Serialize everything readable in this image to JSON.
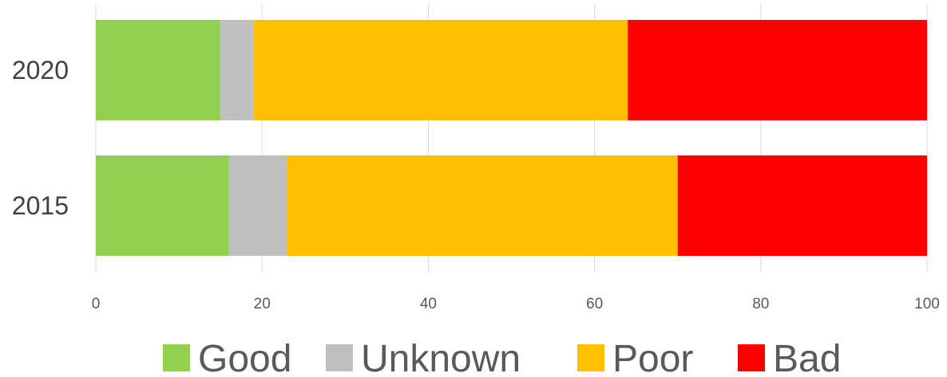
{
  "chart_data": {
    "type": "bar",
    "orientation": "horizontal",
    "stacked": true,
    "categories": [
      "2020",
      "2015"
    ],
    "series": [
      {
        "name": "Good",
        "color": "#92d050",
        "values": [
          15,
          16
        ]
      },
      {
        "name": "Unknown",
        "color": "#bfbfbf",
        "values": [
          4,
          7
        ]
      },
      {
        "name": "Poor",
        "color": "#ffc000",
        "values": [
          45,
          47
        ]
      },
      {
        "name": "Bad",
        "color": "#ff0000",
        "values": [
          36,
          30
        ]
      }
    ],
    "xlim": [
      0,
      100
    ],
    "xticks": [
      0,
      20,
      40,
      60,
      80,
      100
    ],
    "grid": "vertical",
    "legend_position": "bottom"
  }
}
